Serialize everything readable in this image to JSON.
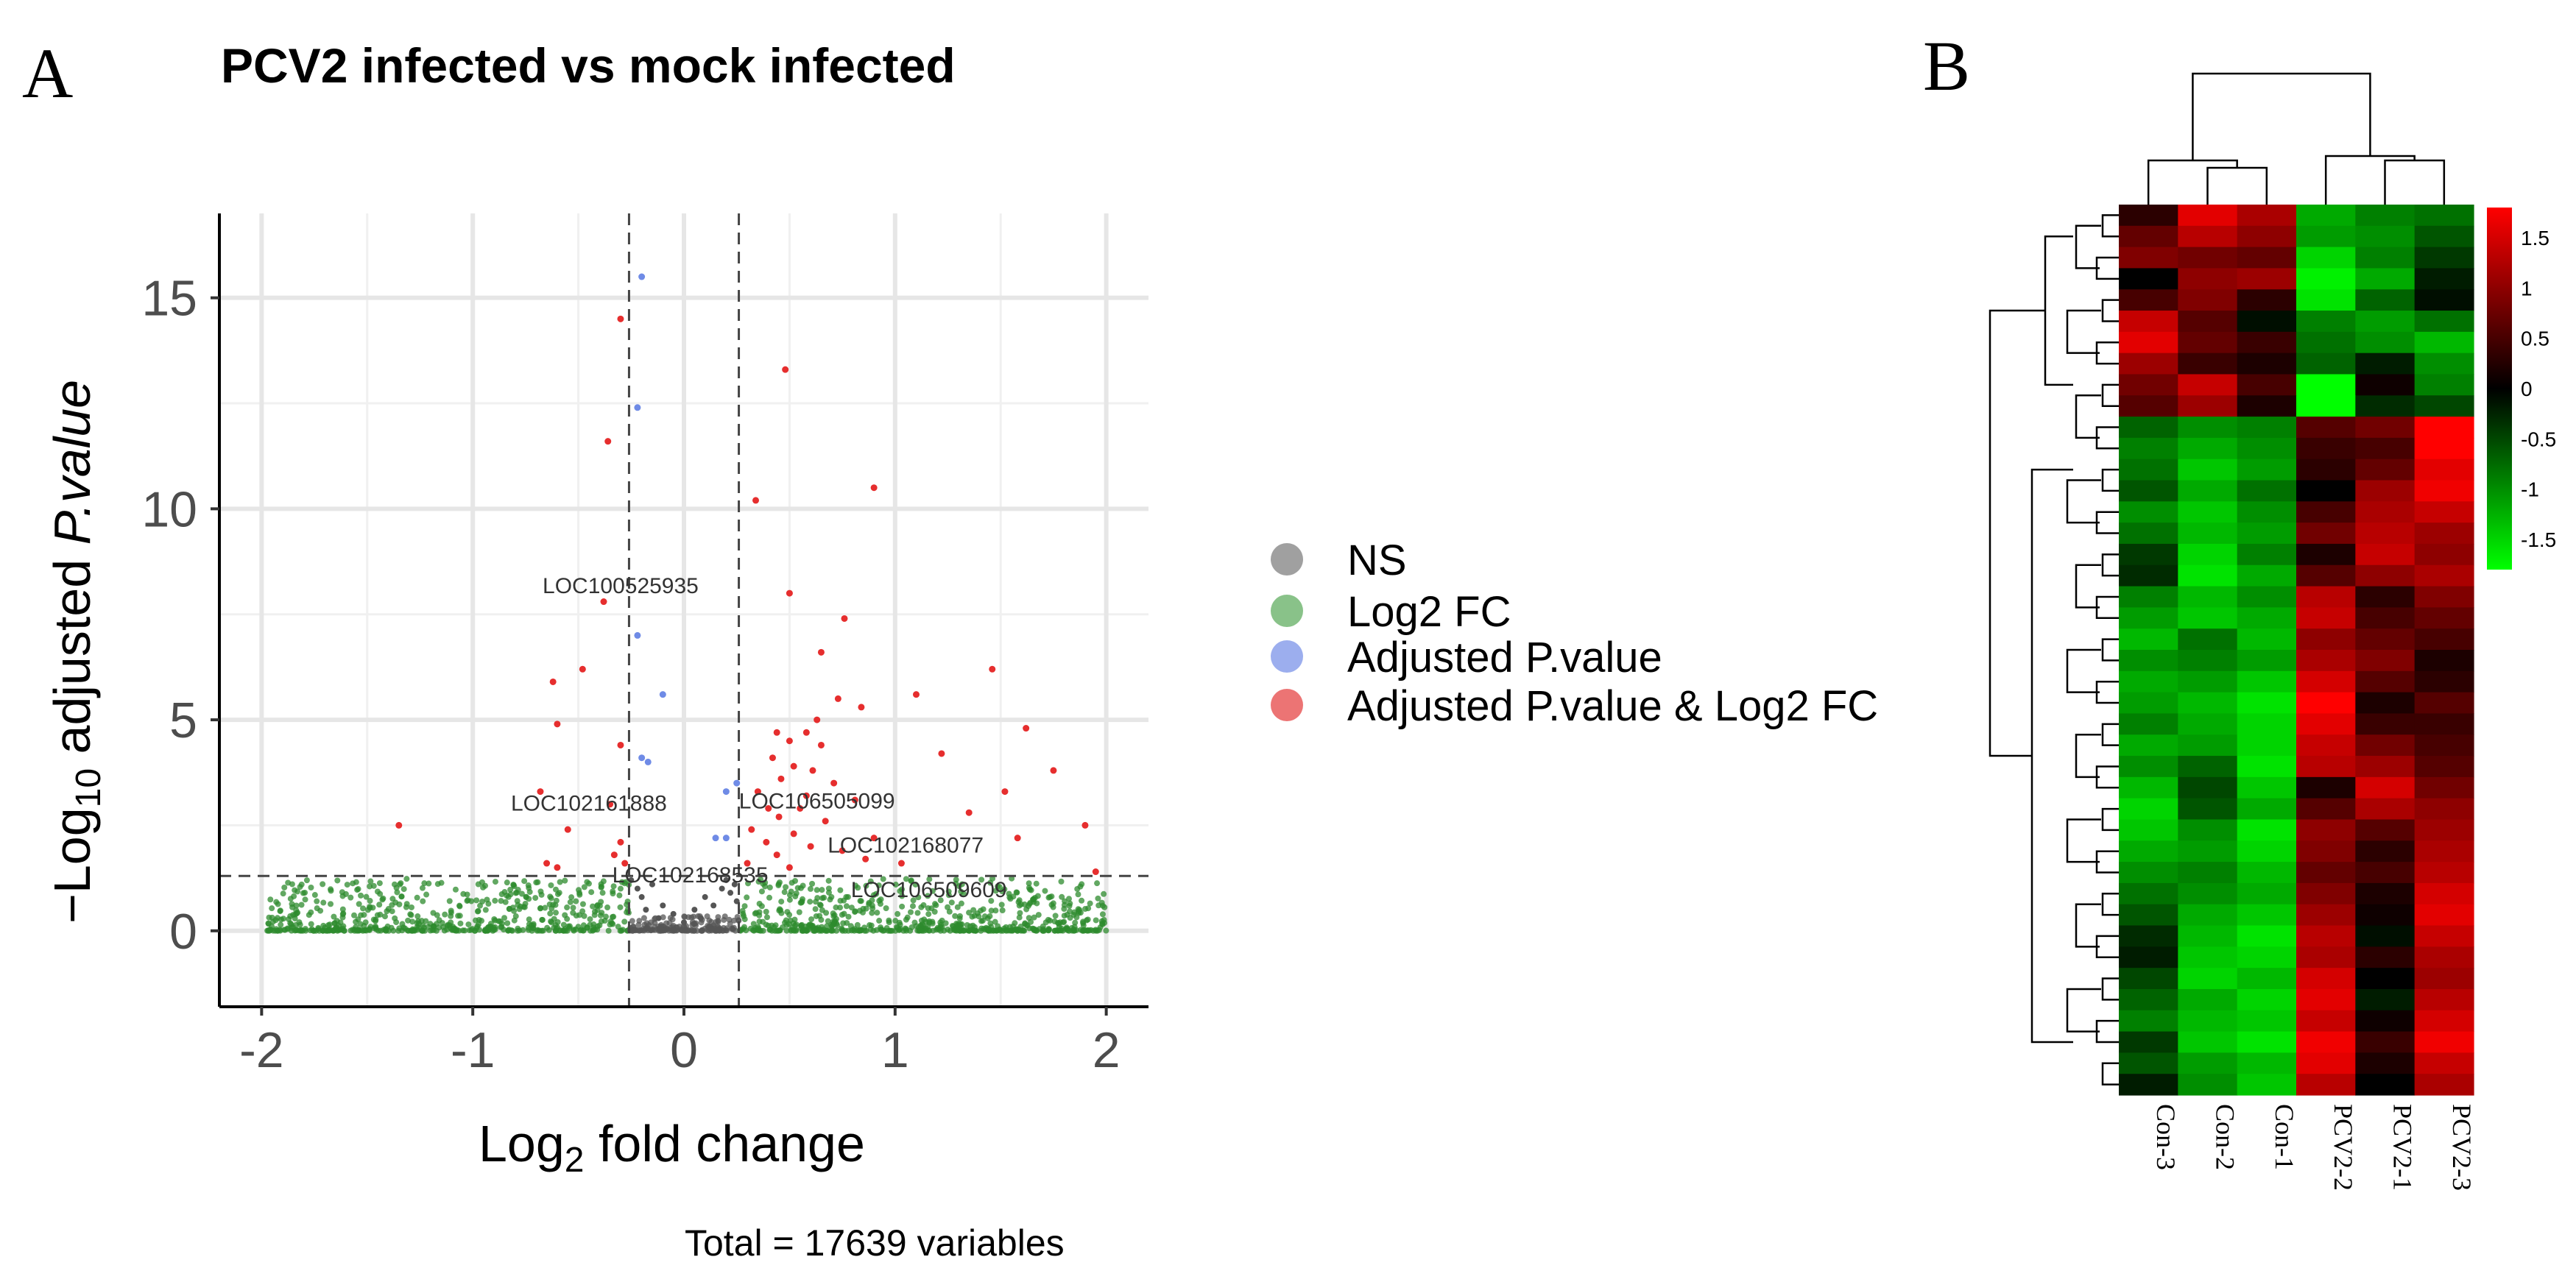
{
  "panel_a": {
    "letter": "A",
    "title": "PCV2 infected vs mock infected",
    "caption": "Total = 17639 variables"
  },
  "panel_b": {
    "letter": "B"
  },
  "volcano_axis": {
    "xlabel_main": "Log",
    "xlabel_sub": "2",
    "xlabel_rest": " fold change",
    "ylabel_pre": "−Log",
    "ylabel_sub": "10",
    "ylabel_mid": " adjusted ",
    "ylabel_italic": "P.value"
  },
  "legend": [
    {
      "label": "NS",
      "color": "#808080"
    },
    {
      "label": "Log2 FC",
      "color": "#3a9a3a"
    },
    {
      "label": "Adjusted P.value",
      "color": "#7b93e8"
    },
    {
      "label": "Adjusted P.value & Log2 FC",
      "color": "#e64545"
    }
  ],
  "chart_data": [
    {
      "type": "scatter",
      "title": "PCV2 infected vs mock infected",
      "xlabel": "Log2 fold change",
      "ylabel": "-Log10 adjusted P.value",
      "xlim": [
        -2.2,
        2.2
      ],
      "ylim": [
        -1.8,
        17
      ],
      "x_ticks": [
        -2,
        -1,
        0,
        1,
        2
      ],
      "y_ticks": [
        0,
        5,
        10,
        15
      ],
      "x_tick_labels": [
        "-2",
        "-1",
        "0",
        "1",
        "2"
      ],
      "y_tick_labels": [
        "0",
        "5",
        "10",
        "15"
      ],
      "fc_cutoff": 0.26,
      "p_cutoff": 1.3,
      "total_variables": 17639,
      "categories": [
        "NS",
        "Log2 FC",
        "Adjusted P.value",
        "Adjusted P.value & Log2 FC"
      ],
      "series": {
        "blue": [
          [
            -0.2,
            15.5
          ],
          [
            -0.22,
            12.4
          ],
          [
            -0.22,
            7.0
          ],
          [
            -0.1,
            5.6
          ],
          [
            -0.2,
            4.1
          ],
          [
            -0.17,
            4.0
          ],
          [
            0.2,
            3.3
          ],
          [
            0.25,
            3.5
          ],
          [
            0.15,
            2.2
          ],
          [
            0.2,
            2.2
          ]
        ],
        "red": [
          [
            -0.3,
            14.5
          ],
          [
            -0.36,
            11.6
          ],
          [
            -0.38,
            7.8
          ],
          [
            -0.48,
            6.2
          ],
          [
            -0.62,
            5.9
          ],
          [
            -0.6,
            4.9
          ],
          [
            -0.3,
            4.4
          ],
          [
            -0.68,
            3.3
          ],
          [
            -0.35,
            3.0
          ],
          [
            -1.35,
            2.5
          ],
          [
            -0.55,
            2.4
          ],
          [
            -0.3,
            2.1
          ],
          [
            -0.33,
            1.8
          ],
          [
            -0.28,
            1.6
          ],
          [
            -0.6,
            1.5
          ],
          [
            -0.65,
            1.6
          ],
          [
            0.48,
            13.3
          ],
          [
            0.34,
            10.2
          ],
          [
            0.9,
            10.5
          ],
          [
            0.5,
            8.0
          ],
          [
            0.76,
            7.4
          ],
          [
            0.65,
            6.6
          ],
          [
            1.46,
            6.2
          ],
          [
            1.1,
            5.6
          ],
          [
            0.73,
            5.5
          ],
          [
            0.84,
            5.3
          ],
          [
            0.63,
            5.0
          ],
          [
            1.62,
            4.8
          ],
          [
            0.44,
            4.7
          ],
          [
            0.58,
            4.7
          ],
          [
            0.5,
            4.5
          ],
          [
            0.65,
            4.4
          ],
          [
            1.22,
            4.2
          ],
          [
            0.42,
            4.1
          ],
          [
            0.52,
            3.9
          ],
          [
            0.61,
            3.8
          ],
          [
            1.75,
            3.8
          ],
          [
            0.46,
            3.6
          ],
          [
            0.71,
            3.5
          ],
          [
            0.35,
            3.3
          ],
          [
            1.52,
            3.3
          ],
          [
            0.58,
            3.2
          ],
          [
            0.81,
            3.1
          ],
          [
            0.4,
            2.9
          ],
          [
            0.55,
            2.9
          ],
          [
            1.35,
            2.8
          ],
          [
            0.45,
            2.7
          ],
          [
            0.67,
            2.6
          ],
          [
            1.9,
            2.5
          ],
          [
            0.32,
            2.4
          ],
          [
            0.52,
            2.3
          ],
          [
            0.9,
            2.2
          ],
          [
            1.58,
            2.2
          ],
          [
            0.39,
            2.1
          ],
          [
            0.6,
            2.0
          ],
          [
            0.75,
            1.9
          ],
          [
            0.44,
            1.8
          ],
          [
            0.86,
            1.7
          ],
          [
            1.03,
            1.6
          ],
          [
            1.95,
            1.4
          ],
          [
            0.3,
            1.6
          ],
          [
            0.5,
            1.5
          ]
        ],
        "gray": [
          [
            -0.25,
            1.2
          ],
          [
            -0.22,
            1.0
          ],
          [
            -0.15,
            1.1
          ],
          [
            -0.2,
            0.8
          ],
          [
            -0.1,
            0.6
          ],
          [
            -0.05,
            0.4
          ],
          [
            0.05,
            0.5
          ],
          [
            0.1,
            0.8
          ],
          [
            0.18,
            1.0
          ],
          [
            0.2,
            1.2
          ],
          [
            0.22,
            0.9
          ],
          [
            0.14,
            0.6
          ],
          [
            0.25,
            0.7
          ],
          [
            -0.12,
            0.3
          ],
          [
            0.0,
            0.2
          ],
          [
            -0.18,
            0.5
          ],
          [
            0.08,
            0.3
          ],
          [
            0.24,
            1.1
          ]
        ]
      },
      "labels": [
        {
          "text": "LOC100525935",
          "x": -0.3,
          "y": 8.0
        },
        {
          "text": "LOC102161888",
          "x": -0.45,
          "y": 2.85
        },
        {
          "text": "LOC106505099",
          "x": 0.63,
          "y": 2.9
        },
        {
          "text": "LOC102168077",
          "x": 1.05,
          "y": 1.85
        },
        {
          "text": "LOC102168535",
          "x": 0.03,
          "y": 1.15
        },
        {
          "text": "LOC106509609",
          "x": 1.16,
          "y": 0.8
        }
      ]
    },
    {
      "type": "heatmap",
      "title": "",
      "columns": [
        "Con-3",
        "Con-2",
        "Con-1",
        "PCV2-2",
        "PCV2-1",
        "PCV2-3"
      ],
      "colorbar_ticks": [
        "1.5",
        "1",
        "0.5",
        "0",
        "-0.5",
        "-1",
        "-1.5"
      ],
      "colorbar_values": [
        1.5,
        1,
        0.5,
        0,
        -0.5,
        -1,
        -1.5
      ],
      "value_range": [
        -1.8,
        1.8
      ],
      "colors": {
        "low": "#00ff00",
        "mid": "#000000",
        "high": "#ff0000"
      },
      "values": [
        [
          0.3,
          1.6,
          1.2,
          -1.2,
          -0.9,
          -0.8
        ],
        [
          0.7,
          1.3,
          1.0,
          -1.1,
          -1.0,
          -0.6
        ],
        [
          0.9,
          0.8,
          0.7,
          -1.5,
          -0.9,
          -0.4
        ],
        [
          0.0,
          1.0,
          1.1,
          -1.7,
          -1.2,
          -0.2
        ],
        [
          0.5,
          0.9,
          0.3,
          -1.6,
          -0.7,
          -0.1
        ],
        [
          1.4,
          0.6,
          -0.1,
          -0.9,
          -1.1,
          -0.8
        ],
        [
          1.6,
          0.7,
          0.4,
          -0.8,
          -1.0,
          -1.3
        ],
        [
          1.1,
          0.4,
          0.2,
          -0.7,
          -0.2,
          -1.0
        ],
        [
          0.8,
          1.4,
          0.5,
          -1.8,
          0.1,
          -0.9
        ],
        [
          0.6,
          1.1,
          0.2,
          -1.8,
          -0.3,
          -0.5
        ],
        [
          -0.7,
          -1.0,
          -0.9,
          0.6,
          0.8,
          1.8
        ],
        [
          -0.9,
          -1.2,
          -1.0,
          0.4,
          0.5,
          1.8
        ],
        [
          -0.8,
          -1.4,
          -1.1,
          0.3,
          0.7,
          1.6
        ],
        [
          -0.6,
          -1.2,
          -0.8,
          0.0,
          1.1,
          1.7
        ],
        [
          -1.0,
          -1.4,
          -1.0,
          0.5,
          1.2,
          1.4
        ],
        [
          -0.8,
          -1.3,
          -1.1,
          0.8,
          1.3,
          1.1
        ],
        [
          -0.4,
          -1.5,
          -0.9,
          0.2,
          1.4,
          1.0
        ],
        [
          -0.3,
          -1.6,
          -1.2,
          0.6,
          1.0,
          1.2
        ],
        [
          -0.9,
          -1.3,
          -1.0,
          1.3,
          0.3,
          0.9
        ],
        [
          -1.1,
          -1.4,
          -1.2,
          1.4,
          0.5,
          0.7
        ],
        [
          -1.3,
          -0.8,
          -1.3,
          1.0,
          0.7,
          0.5
        ],
        [
          -1.0,
          -0.9,
          -1.1,
          1.2,
          0.9,
          0.2
        ],
        [
          -1.2,
          -1.1,
          -1.4,
          1.5,
          0.6,
          0.3
        ],
        [
          -1.1,
          -1.3,
          -1.6,
          1.8,
          0.2,
          0.6
        ],
        [
          -0.9,
          -1.2,
          -1.5,
          1.6,
          0.4,
          0.4
        ],
        [
          -1.2,
          -1.1,
          -1.5,
          1.4,
          0.8,
          0.5
        ],
        [
          -1.0,
          -0.7,
          -1.6,
          1.3,
          1.1,
          0.6
        ],
        [
          -1.3,
          -0.5,
          -1.4,
          0.2,
          1.5,
          0.8
        ],
        [
          -1.5,
          -0.6,
          -1.2,
          0.6,
          1.2,
          1.0
        ],
        [
          -1.4,
          -1.0,
          -1.6,
          1.0,
          0.6,
          1.1
        ],
        [
          -1.2,
          -1.1,
          -1.5,
          0.9,
          0.3,
          1.2
        ],
        [
          -1.0,
          -0.9,
          -1.3,
          0.7,
          0.5,
          1.3
        ],
        [
          -0.8,
          -1.0,
          -1.2,
          0.9,
          0.2,
          1.5
        ],
        [
          -0.6,
          -1.2,
          -1.4,
          1.1,
          0.1,
          1.6
        ],
        [
          -0.3,
          -1.3,
          -1.6,
          1.3,
          -0.1,
          1.4
        ],
        [
          -0.2,
          -1.4,
          -1.5,
          1.2,
          0.3,
          1.2
        ],
        [
          -0.5,
          -1.5,
          -1.3,
          1.5,
          0.0,
          1.1
        ],
        [
          -0.7,
          -1.2,
          -1.5,
          1.6,
          -0.2,
          1.3
        ],
        [
          -0.9,
          -1.3,
          -1.4,
          1.4,
          0.1,
          1.5
        ],
        [
          -0.4,
          -1.4,
          -1.6,
          1.7,
          0.4,
          1.7
        ],
        [
          -0.6,
          -1.1,
          -1.3,
          1.6,
          0.2,
          1.4
        ],
        [
          -0.2,
          -1.0,
          -1.4,
          1.3,
          0.0,
          1.2
        ]
      ]
    }
  ]
}
